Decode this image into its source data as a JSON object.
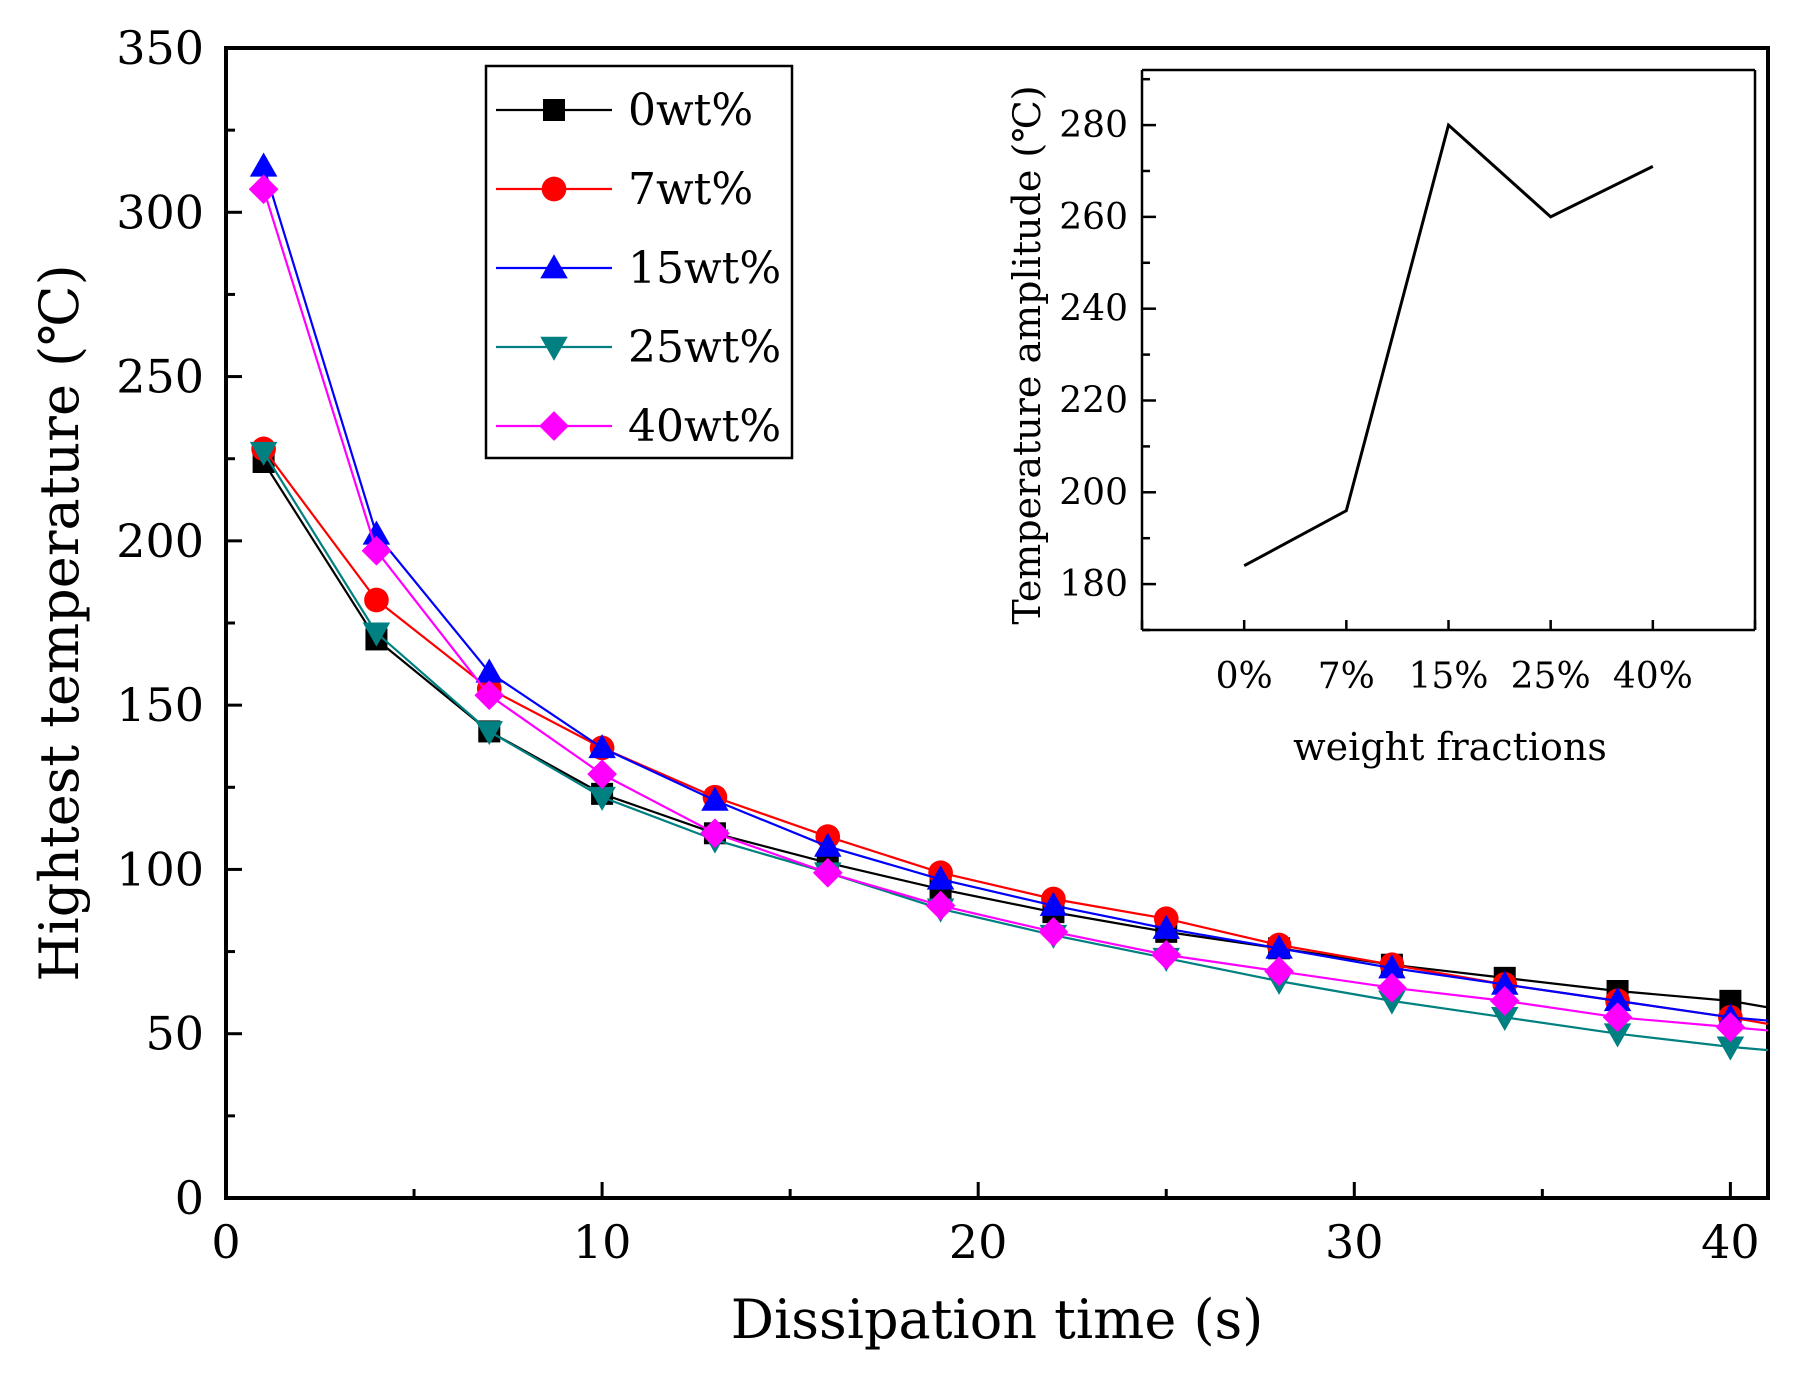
{
  "chart_data": [
    {
      "type": "line",
      "title": "",
      "xlabel": "Dissipation time (s)",
      "ylabel": "Hightest temperature (℃)",
      "xlim": [
        0,
        41
      ],
      "ylim": [
        0,
        350
      ],
      "xticks": [
        0,
        10,
        20,
        30,
        40
      ],
      "xtick_labels": [
        "0",
        "10",
        "20",
        "30",
        "40"
      ],
      "yticks": [
        0,
        50,
        100,
        150,
        200,
        250,
        300,
        350
      ],
      "ytick_labels": [
        "0",
        "50",
        "100",
        "150",
        "200",
        "250",
        "300",
        "350"
      ],
      "grid": false,
      "legend_position": "top-left",
      "x": [
        1,
        4,
        7,
        10,
        13,
        16,
        19,
        22,
        25,
        28,
        31,
        34,
        37,
        40,
        41
      ],
      "series": [
        {
          "name": "0wt%",
          "color": "#000000",
          "marker": "square",
          "values": [
            224,
            170,
            142,
            123,
            111,
            102,
            94,
            87,
            81,
            76,
            71,
            67,
            63,
            60,
            58
          ]
        },
        {
          "name": "7wt%",
          "color": "#ff0000",
          "marker": "circle",
          "values": [
            228,
            182,
            155,
            137,
            122,
            110,
            99,
            91,
            85,
            77,
            71,
            65,
            60,
            55,
            53
          ]
        },
        {
          "name": "15wt%",
          "color": "#0000ff",
          "marker": "triangle-up",
          "values": [
            314,
            202,
            160,
            137,
            121,
            107,
            97,
            89,
            82,
            76,
            70,
            65,
            60,
            55,
            54
          ]
        },
        {
          "name": "25wt%",
          "color": "#008080",
          "marker": "triangle-down",
          "values": [
            227,
            172,
            142,
            122,
            109,
            99,
            88,
            80,
            73,
            66,
            60,
            55,
            50,
            46,
            45
          ]
        },
        {
          "name": "40wt%",
          "color": "#ff00ff",
          "marker": "diamond",
          "values": [
            307,
            197,
            153,
            129,
            111,
            99,
            89,
            81,
            74,
            69,
            64,
            60,
            55,
            52,
            51
          ]
        }
      ]
    },
    {
      "type": "line",
      "title": "",
      "xlabel": "weight fractions",
      "ylabel": "Temperature  amplitude (℃)",
      "categories": [
        "0%",
        "7%",
        "15%",
        "25%",
        "40%"
      ],
      "xlim": [
        -1,
        5
      ],
      "ylim": [
        170,
        292
      ],
      "yticks": [
        180,
        200,
        220,
        240,
        260,
        280
      ],
      "ytick_labels": [
        "180",
        "200",
        "220",
        "240",
        "260",
        "280"
      ],
      "grid": false,
      "legend_position": "none",
      "series": [
        {
          "name": "amplitude",
          "color": "#000000",
          "marker": "none",
          "values": [
            184,
            196,
            280,
            260,
            271
          ]
        }
      ]
    }
  ]
}
